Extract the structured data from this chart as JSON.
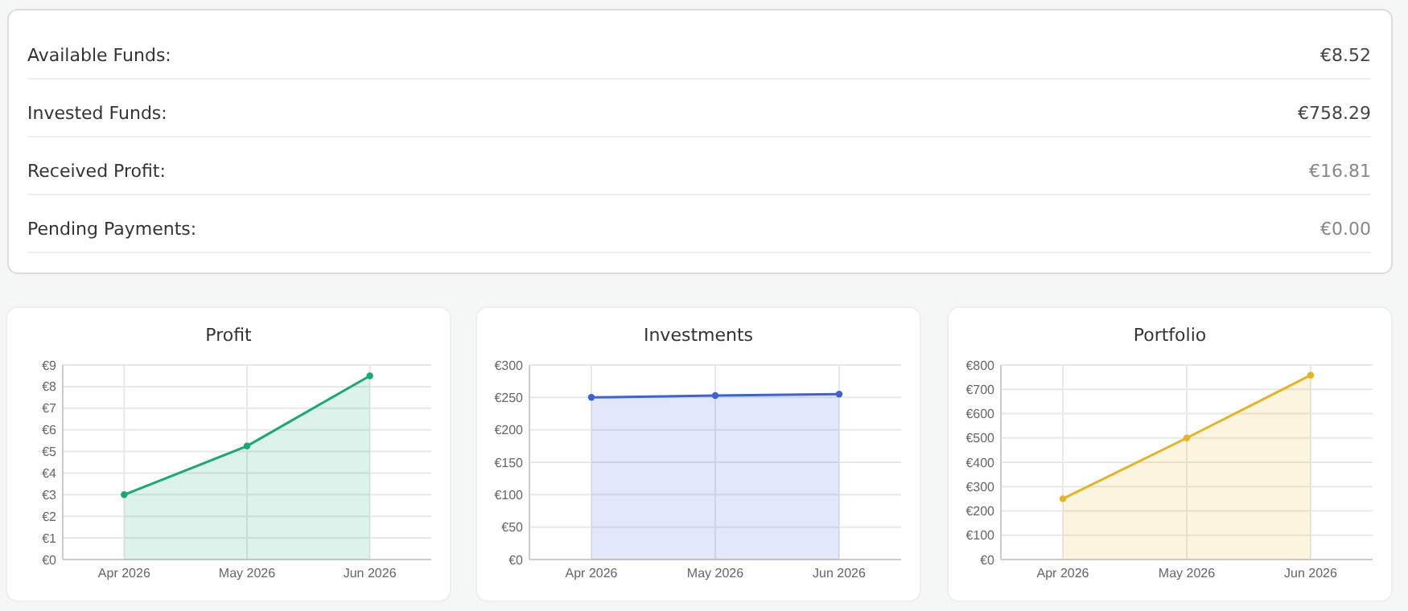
{
  "chart_data": [
    {
      "type": "other",
      "annotations": [
        "Available Funds:",
        "€8.52",
        "Invested Funds:",
        "€758.29",
        "Received Profit:",
        "€16.81",
        "Pending Payments:",
        "€0.00"
      ]
    },
    {
      "type": "area",
      "title": "Profit",
      "categories": [
        "Apr 2026",
        "May 2026",
        "Jun 2026"
      ],
      "series": [
        {
          "color": "#1aa874",
          "values": [
            3.0,
            5.25,
            8.5
          ]
        }
      ],
      "ylim": [
        0,
        9
      ],
      "yticks": [
        {
          "value": 0,
          "label": "€0"
        },
        {
          "value": 1,
          "label": "€1"
        },
        {
          "value": 2,
          "label": "€2"
        },
        {
          "value": 3,
          "label": "€3"
        },
        {
          "value": 4,
          "label": "€4"
        },
        {
          "value": 5,
          "label": "€5"
        },
        {
          "value": 6,
          "label": "€6"
        },
        {
          "value": 7,
          "label": "€7"
        },
        {
          "value": 8,
          "label": "€8"
        },
        {
          "value": 9,
          "label": "€9"
        }
      ],
      "grid": true,
      "marker": "circle"
    },
    {
      "type": "area",
      "title": "Investments",
      "categories": [
        "Apr 2026",
        "May 2026",
        "Jun 2026"
      ],
      "series": [
        {
          "color": "#3b63d6",
          "values": [
            250,
            253,
            255
          ]
        }
      ],
      "ylim": [
        0,
        300
      ],
      "yticks": [
        {
          "value": 0,
          "label": "€0"
        },
        {
          "value": 50,
          "label": "€50"
        },
        {
          "value": 100,
          "label": "€100"
        },
        {
          "value": 150,
          "label": "€150"
        },
        {
          "value": 200,
          "label": "€200"
        },
        {
          "value": 250,
          "label": "€250"
        },
        {
          "value": 300,
          "label": "€300"
        }
      ],
      "grid": true,
      "marker": "circle"
    },
    {
      "type": "area",
      "title": "Portfolio",
      "categories": [
        "Apr 2026",
        "May 2026",
        "Jun 2026"
      ],
      "series": [
        {
          "color": "#e6b325",
          "values": [
            250,
            500,
            758
          ]
        }
      ],
      "ylim": [
        0,
        800
      ],
      "yticks": [
        {
          "value": 0,
          "label": "€0"
        },
        {
          "value": 100,
          "label": "€100"
        },
        {
          "value": 200,
          "label": "€200"
        },
        {
          "value": 300,
          "label": "€300"
        },
        {
          "value": 400,
          "label": "€400"
        },
        {
          "value": 500,
          "label": "€500"
        },
        {
          "value": 600,
          "label": "€600"
        },
        {
          "value": 700,
          "label": "€700"
        },
        {
          "value": 800,
          "label": "€800"
        }
      ],
      "grid": true,
      "marker": "circle"
    }
  ]
}
